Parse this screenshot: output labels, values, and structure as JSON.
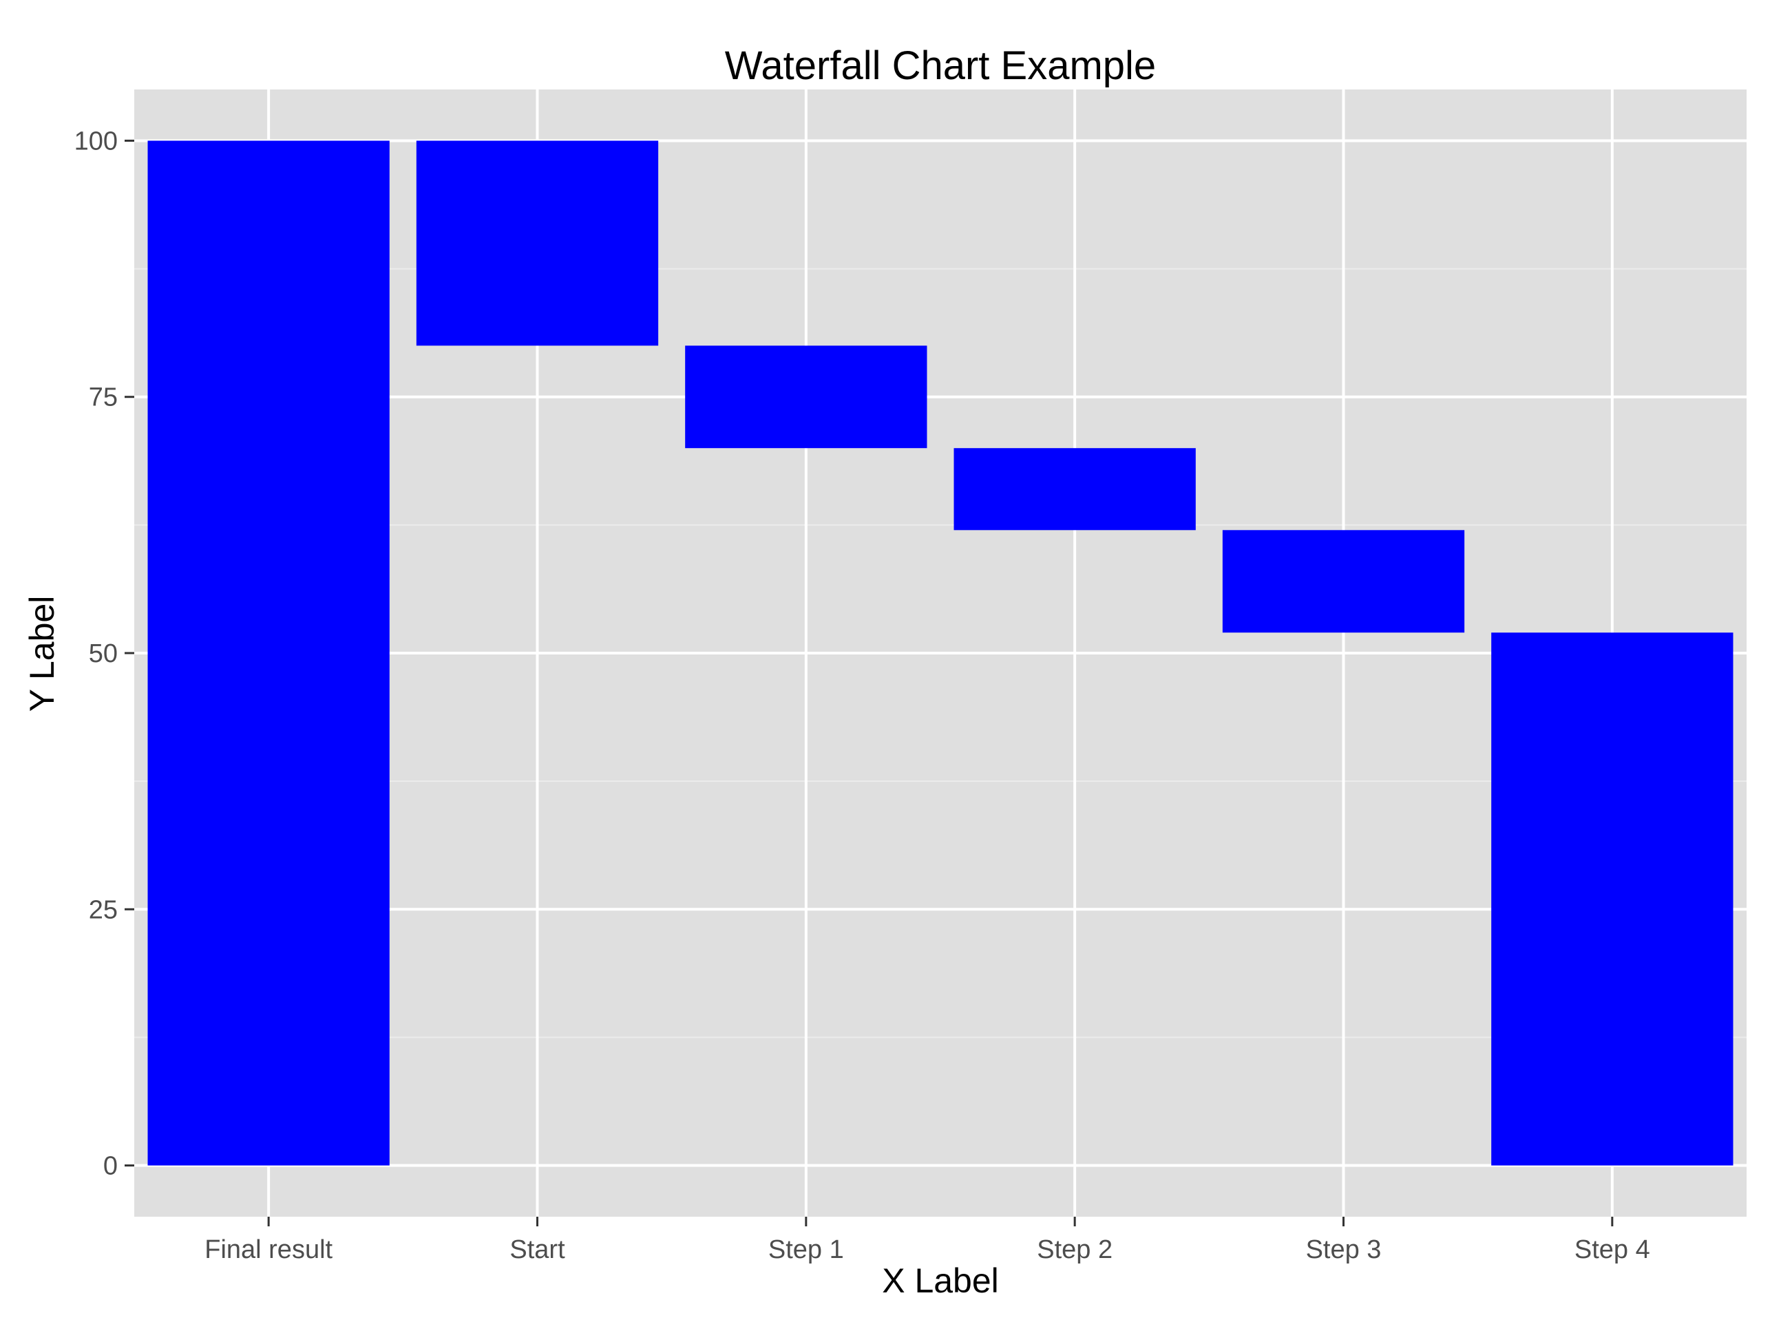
{
  "chart_data": {
    "type": "bar",
    "subtype": "waterfall",
    "title": "Waterfall Chart Example",
    "xlabel": "X Label",
    "ylabel": "Y Label",
    "categories": [
      "Final result",
      "Start",
      "Step 1",
      "Step 2",
      "Step 3",
      "Step 4"
    ],
    "bars": [
      {
        "category": "Final result",
        "start": 0,
        "end": 100
      },
      {
        "category": "Start",
        "start": 80,
        "end": 100
      },
      {
        "category": "Step 1",
        "start": 70,
        "end": 80
      },
      {
        "category": "Step 2",
        "start": 62,
        "end": 70
      },
      {
        "category": "Step 3",
        "start": 52,
        "end": 62
      },
      {
        "category": "Step 4",
        "start": 0,
        "end": 52
      }
    ],
    "ylim": [
      -5,
      105
    ],
    "yticks": [
      0,
      25,
      50,
      75,
      100
    ],
    "ytick_labels": [
      "0",
      "25",
      "50",
      "75",
      "100"
    ],
    "grid": true,
    "legend": "none",
    "colors": {
      "bar": "#0000ff",
      "panel_background": "#dfdfdf",
      "grid_major": "#ffffff",
      "grid_minor": "#ececec",
      "tick_label": "#4d4d4d",
      "tick_mark": "#333333"
    }
  }
}
